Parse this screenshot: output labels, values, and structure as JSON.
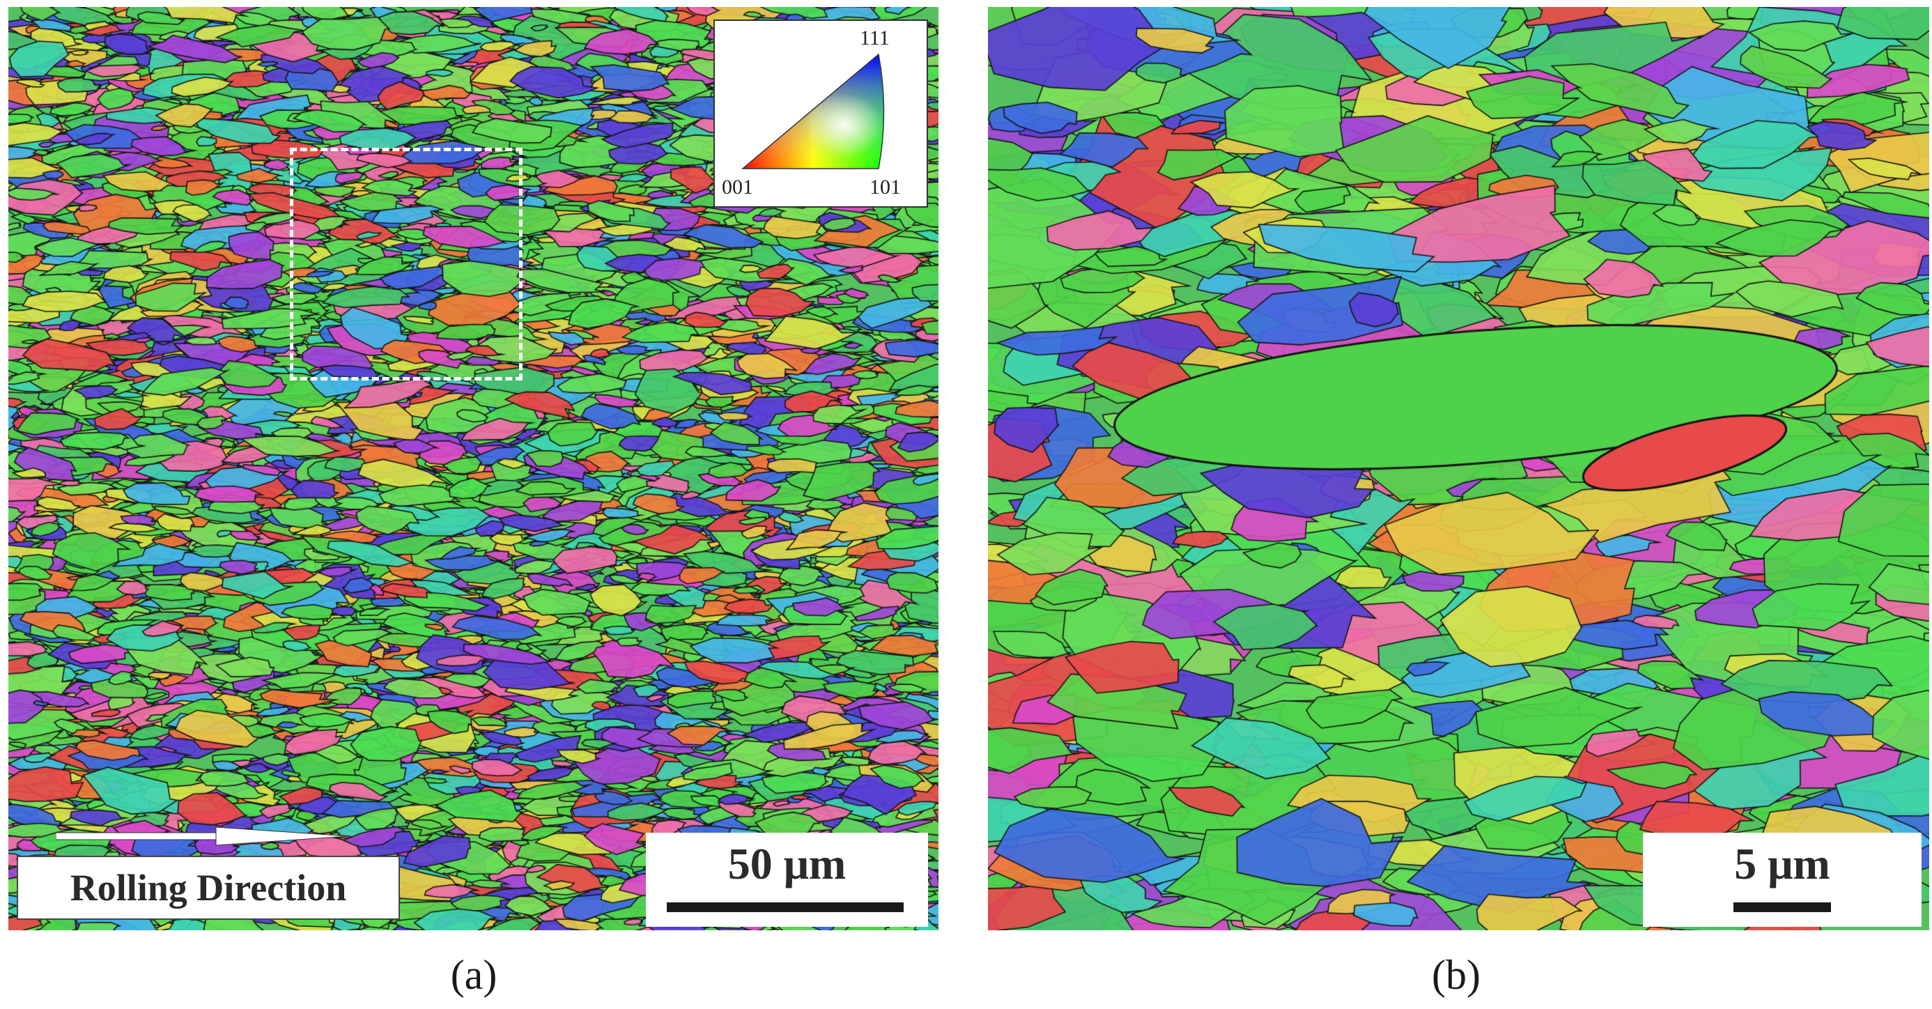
{
  "figure": {
    "panels": [
      {
        "id": "a",
        "caption": "(a)",
        "scale_bar_label": "50 μm",
        "direction_label": "Rolling Direction",
        "ipf_key": {
          "corner_111": "111",
          "corner_001": "001",
          "corner_101": "101"
        },
        "inset_box": "dashed white rectangle marking region shown in (b)"
      },
      {
        "id": "b",
        "caption": "(b)",
        "scale_bar_label": "5 μm"
      }
    ],
    "colors": {
      "ipf_001": "#ff0000",
      "ipf_101": "#00ff00",
      "ipf_111": "#0000ff",
      "grain_boundary": "#111111",
      "dominant_grain": "#4fd24a"
    }
  }
}
